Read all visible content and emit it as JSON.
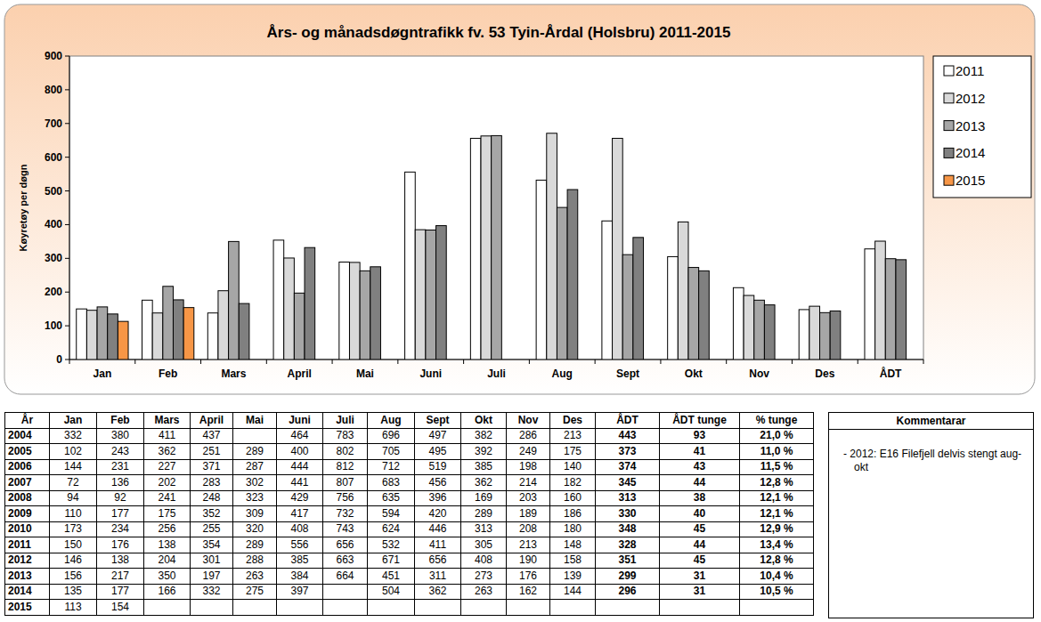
{
  "chart_data": {
    "type": "bar",
    "title": "Års- og månadsdøgntrafikk fv. 53 Tyin-Årdal (Holsbru) 2011-2015",
    "y_label": "Køyretøy per døgn",
    "categories": [
      "Jan",
      "Feb",
      "Mars",
      "April",
      "Mai",
      "Juni",
      "Juli",
      "Aug",
      "Sept",
      "Okt",
      "Nov",
      "Des",
      "ÅDT"
    ],
    "series": [
      {
        "name": "2011",
        "color": "#ffffff",
        "values": [
          150,
          176,
          138,
          354,
          289,
          556,
          656,
          532,
          411,
          305,
          213,
          148,
          328
        ]
      },
      {
        "name": "2012",
        "color": "#d9d9d9",
        "values": [
          146,
          138,
          204,
          301,
          288,
          385,
          663,
          671,
          656,
          408,
          190,
          158,
          351
        ]
      },
      {
        "name": "2013",
        "color": "#a6a6a6",
        "values": [
          156,
          217,
          350,
          197,
          263,
          384,
          664,
          451,
          311,
          273,
          176,
          139,
          299
        ]
      },
      {
        "name": "2014",
        "color": "#808080",
        "values": [
          135,
          177,
          166,
          332,
          275,
          397,
          null,
          504,
          362,
          263,
          162,
          144,
          296
        ]
      },
      {
        "name": "2015",
        "color": "#f79646",
        "values": [
          113,
          154,
          null,
          null,
          null,
          null,
          null,
          null,
          null,
          null,
          null,
          null,
          null
        ]
      }
    ],
    "ylim": [
      0,
      900
    ],
    "yticks": [
      0,
      100,
      200,
      300,
      400,
      500,
      600,
      700,
      800,
      900
    ],
    "grid": false,
    "legend": "right"
  },
  "table": {
    "header": [
      "År",
      "Jan",
      "Feb",
      "Mars",
      "April",
      "Mai",
      "Juni",
      "Juli",
      "Aug",
      "Sept",
      "Okt",
      "Nov",
      "Des",
      "ÅDT",
      "ÅDT tunge",
      "% tunge"
    ],
    "rows": [
      [
        2004,
        332,
        380,
        411,
        437,
        null,
        464,
        783,
        696,
        497,
        382,
        286,
        213,
        443,
        93,
        "21,0 %"
      ],
      [
        2005,
        102,
        243,
        362,
        251,
        289,
        400,
        802,
        705,
        495,
        392,
        249,
        175,
        373,
        41,
        "11,0 %"
      ],
      [
        2006,
        144,
        231,
        227,
        371,
        287,
        444,
        812,
        712,
        519,
        385,
        198,
        140,
        374,
        43,
        "11,5 %"
      ],
      [
        2007,
        72,
        136,
        202,
        283,
        302,
        441,
        807,
        683,
        456,
        362,
        214,
        182,
        345,
        44,
        "12,8 %"
      ],
      [
        2008,
        94,
        92,
        241,
        248,
        323,
        429,
        756,
        635,
        396,
        169,
        203,
        160,
        313,
        38,
        "12,1 %"
      ],
      [
        2009,
        110,
        177,
        175,
        352,
        309,
        417,
        732,
        594,
        420,
        289,
        189,
        186,
        330,
        40,
        "12,1 %"
      ],
      [
        2010,
        173,
        234,
        256,
        255,
        320,
        408,
        743,
        624,
        446,
        313,
        208,
        180,
        348,
        45,
        "12,9 %"
      ],
      [
        2011,
        150,
        176,
        138,
        354,
        289,
        556,
        656,
        532,
        411,
        305,
        213,
        148,
        328,
        44,
        "13,4 %"
      ],
      [
        2012,
        146,
        138,
        204,
        301,
        288,
        385,
        663,
        671,
        656,
        408,
        190,
        158,
        351,
        45,
        "12,8 %"
      ],
      [
        2013,
        156,
        217,
        350,
        197,
        263,
        384,
        664,
        451,
        311,
        273,
        176,
        139,
        299,
        31,
        "10,4 %"
      ],
      [
        2014,
        135,
        177,
        166,
        332,
        275,
        397,
        null,
        504,
        362,
        263,
        162,
        144,
        296,
        31,
        "10,5 %"
      ],
      [
        2015,
        113,
        154,
        null,
        null,
        null,
        null,
        null,
        null,
        null,
        null,
        null,
        null,
        null,
        null,
        null
      ]
    ]
  },
  "comment": {
    "title": "Kommentarar",
    "text": "- 2012: E16 Filefjell delvis stengt aug-okt"
  }
}
